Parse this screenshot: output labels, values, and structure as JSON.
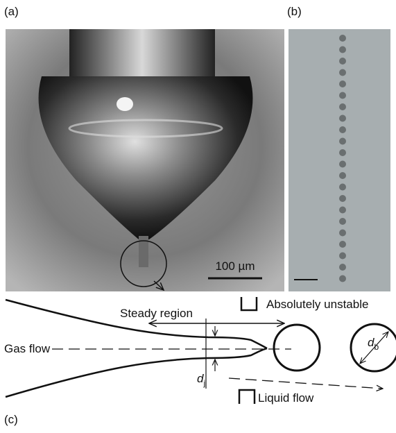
{
  "panels": {
    "a": {
      "label": "(a)",
      "scale_bar": "100 µm"
    },
    "b": {
      "label": "(b)"
    },
    "c": {
      "label": "(c)",
      "steady_region": "Steady region",
      "absolutely_unstable": "Absolutely unstable",
      "gas_flow": "Gas flow",
      "liquid_flow": "Liquid flow",
      "jet_diameter": {
        "symbol": "d",
        "subscript": "j"
      },
      "bubble_diameter": {
        "symbol": "d",
        "subscript": "b"
      }
    }
  }
}
